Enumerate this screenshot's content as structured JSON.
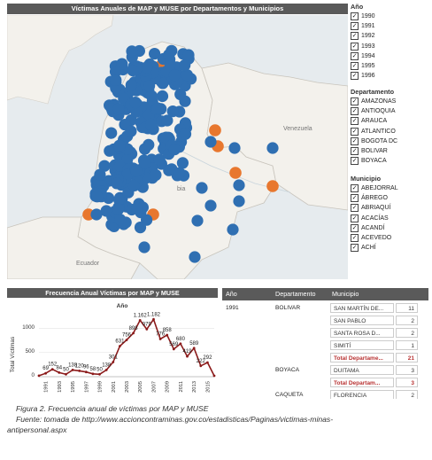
{
  "map": {
    "title": "Víctimas Anuales de MAP y MUSE por Departamentos y Municipios",
    "labels": {
      "venezuela": "Venezuela",
      "ecuador": "Ecuador",
      "colombia_partial": "bia"
    },
    "colors": {
      "water": "#e6ebee",
      "land": "#f3f1ec",
      "dot": "#2f6fb2",
      "dot_alt": "#e8772e"
    }
  },
  "filters": {
    "year": {
      "title": "Año",
      "items": [
        "1990",
        "1991",
        "1992",
        "1993",
        "1994",
        "1995",
        "1996"
      ]
    },
    "department": {
      "title": "Departamento",
      "items": [
        "AMAZONAS",
        "ANTIOQUIA",
        "ARAUCA",
        "ATLANTICO",
        "BOGOTA DC",
        "BOLIVAR",
        "BOYACA"
      ]
    },
    "municipality": {
      "title": "Municipio",
      "items": [
        "ABEJORRAL",
        "ÁBREGO",
        "ABRIAQUÍ",
        "ACACÍAS",
        "ACANDÍ",
        "ACEVEDO",
        "ACHÍ"
      ]
    },
    "check_mark": "✓"
  },
  "chart": {
    "panel_title": "Frecuencia Anual Víctimas por MAP y MUSE",
    "legend_title": "Año",
    "ylabel": "Total Víctimas",
    "y_ticks": [
      "1000",
      "500",
      "0"
    ]
  },
  "chart_data": {
    "type": "line",
    "title": "Frecuencia Anual Víctimas por MAP y MUSE",
    "xlabel": "",
    "ylabel": "Total Víctimas",
    "ylim": [
      0,
      1200
    ],
    "x": [
      1990,
      1991,
      1992,
      1993,
      1994,
      1995,
      1996,
      1997,
      1998,
      1999,
      2000,
      2001,
      2002,
      2003,
      2004,
      2005,
      2006,
      2007,
      2008,
      2009,
      2010,
      2011,
      2012,
      2013,
      2014,
      2015,
      2016
    ],
    "x_tick_labels": [
      "1991",
      "1993",
      "1995",
      "1997",
      "1999",
      "2001",
      "2003",
      "2005",
      "2007",
      "2009",
      "2011",
      "2013",
      "2015"
    ],
    "series": [
      {
        "values": [
          21,
          69,
          152,
          84,
          50,
          138,
          120,
          96,
          58,
          50,
          138,
          301,
          631,
          756,
          898,
          1162,
          979,
          1182,
          776,
          858,
          569,
          680,
          419,
          589,
          222,
          292,
          18
        ]
      }
    ],
    "data_labels": [
      "",
      "69",
      "152",
      "84",
      "50",
      "138",
      "120",
      "96",
      "58",
      "50",
      "138",
      "301",
      "631",
      "756",
      "898",
      "1.162",
      "979",
      "1.182",
      "776",
      "858",
      "569",
      "680",
      "419",
      "589",
      "222",
      "292",
      ""
    ]
  },
  "table": {
    "headers": [
      "Año",
      "Departamento",
      "Municipio"
    ],
    "rows": [
      {
        "year": "1991",
        "dept": "BOLIVAR",
        "mun": "SAN MARTÍN DE...",
        "val": "11"
      },
      {
        "year": "",
        "dept": "",
        "mun": "SAN PABLO",
        "val": "2"
      },
      {
        "year": "",
        "dept": "",
        "mun": "SANTA ROSA D...",
        "val": "2"
      },
      {
        "year": "",
        "dept": "",
        "mun": "SIMITÍ",
        "val": "1"
      },
      {
        "year": "",
        "dept": "",
        "mun": "Total Departame...",
        "val": "21",
        "total": true
      },
      {
        "year": "",
        "dept": "BOYACA",
        "mun": "DUITAMA",
        "val": "3"
      },
      {
        "year": "",
        "dept": "",
        "mun": "Total Departam...",
        "val": "3",
        "total": true
      },
      {
        "year": "",
        "dept": "CAQUETA",
        "mun": "FLORENCIA",
        "val": "2"
      }
    ]
  },
  "caption": {
    "line1": "Figura 2. Frecuencia anual de víctimas por MAP y MUSE",
    "line2": "Fuente: tomada de http://www.accioncontraminas.gov.co/estadisticas/Paginas/victimas-minas-",
    "line3": "antipersonal.aspx"
  }
}
